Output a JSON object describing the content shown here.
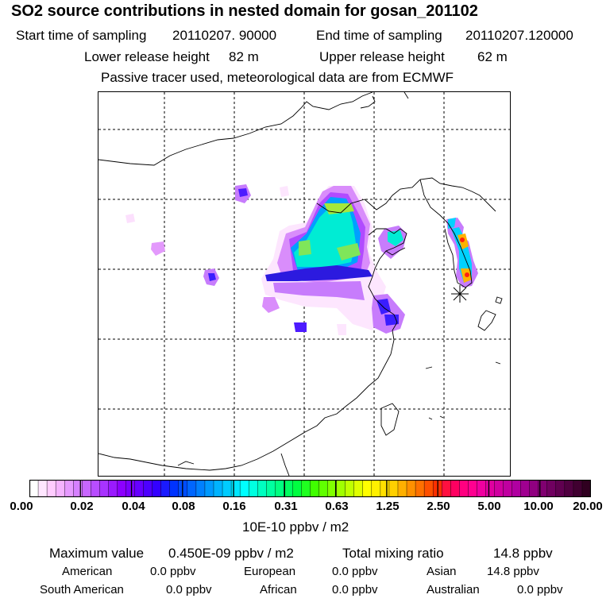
{
  "header": {
    "title": "SO2 source contributions in nested domain for gosan_201102",
    "start_label": "Start time of sampling",
    "start_value": "20110207. 90000",
    "end_label": "End time of sampling",
    "end_value": "20110207.120000",
    "lower_label": "Lower release height",
    "lower_value": "82 m",
    "upper_label": "Upper release height",
    "upper_value": "62 m",
    "note": "Passive tracer used, meteorological data are from ECMWF"
  },
  "colorbar": {
    "ticks": [
      "0.00",
      "0.02",
      "0.04",
      "0.08",
      "0.16",
      "0.31",
      "0.63",
      "1.25",
      "2.50",
      "5.00",
      "10.00",
      "20.00"
    ],
    "unit": "10E-10 ppbv / m2",
    "colors": [
      "#ffffff",
      "#ffe6ff",
      "#ffccff",
      "#f5b3ff",
      "#e699ff",
      "#d680ff",
      "#c866ff",
      "#b84dff",
      "#a833ff",
      "#9a1aff",
      "#8c00ff",
      "#7a00ff",
      "#6600ff",
      "#4d00ff",
      "#3300ff",
      "#1a1aff",
      "#0033ff",
      "#004dff",
      "#0066ff",
      "#0080ff",
      "#0099ff",
      "#00b3ff",
      "#00ccff",
      "#00e6ff",
      "#00ffff",
      "#00ffe0",
      "#00ffc0",
      "#00ffa0",
      "#00ff80",
      "#00ff60",
      "#00ff40",
      "#20ff20",
      "#40ff00",
      "#60ff00",
      "#80ff00",
      "#a0ff00",
      "#c0ff00",
      "#e0ff00",
      "#ffff00",
      "#fff000",
      "#ffe000",
      "#ffd000",
      "#ffb000",
      "#ff9000",
      "#ff7000",
      "#ff5000",
      "#ff3000",
      "#ff1040",
      "#ff0060",
      "#ff0080",
      "#ff0090",
      "#f000a0",
      "#e000a0",
      "#d000a0",
      "#c000a0",
      "#b000a0",
      "#a00090",
      "#900080",
      "#800070",
      "#700060",
      "#600050",
      "#500040",
      "#400030",
      "#300020"
    ]
  },
  "summary": {
    "max_label": "Maximum value",
    "max_value": "0.450E-09 ppbv / m2",
    "total_label": "Total mixing ratio",
    "total_value": "14.8 ppbv",
    "american_label": "American",
    "american_value": "0.0 ppbv",
    "european_label": "European",
    "european_value": "0.0 ppbv",
    "asian_label": "Asian",
    "asian_value": "14.8 ppbv",
    "south_american_label": "South American",
    "south_american_value": "0.0 ppbv",
    "african_label": "African",
    "african_value": "0.0 ppbv",
    "australian_label": "Australian",
    "australian_value": "0.0 ppbv"
  }
}
